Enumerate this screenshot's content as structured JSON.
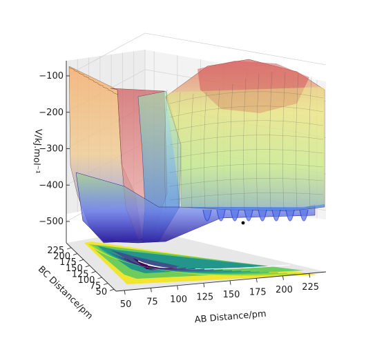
{
  "chart_data": {
    "type": "surface3d",
    "x_axis": {
      "label": "AB Distance/pm",
      "ticks": [
        50,
        75,
        100,
        125,
        150,
        175,
        200,
        225
      ]
    },
    "y_axis": {
      "label": "BC Distance/pm",
      "ticks": [
        50,
        75,
        100,
        125,
        150,
        175,
        200,
        225
      ]
    },
    "z_axis": {
      "label": "V/kJ.mol⁻¹",
      "ticks": [
        -500,
        -400,
        -300,
        -200,
        -100
      ]
    },
    "surface": "potential energy surface for A + BC",
    "projection": "filled contour on floor (viridis)",
    "marked_point": "black dot"
  },
  "tick_text": {
    "x": [
      "50",
      "75",
      "100",
      "125",
      "150",
      "175",
      "200",
      "225"
    ],
    "y": [
      "50",
      "75",
      "100",
      "125",
      "150",
      "175",
      "200",
      "225"
    ],
    "z": [
      "−500",
      "−400",
      "−300",
      "−200",
      "−100"
    ]
  },
  "colors": {
    "pane_back": "#f2f2f2",
    "pane_side": "#e9e9e9",
    "pane_floor": "#e6e6e6",
    "grid": "#d4d4d4",
    "surface_low": "#3b2fd6",
    "surface_mid": "#7ed67a",
    "surface_high": "#e05050",
    "plateau": "#e6f08a",
    "contour_dark": "#3b0a5a",
    "contour_light": "#f1e51d"
  }
}
